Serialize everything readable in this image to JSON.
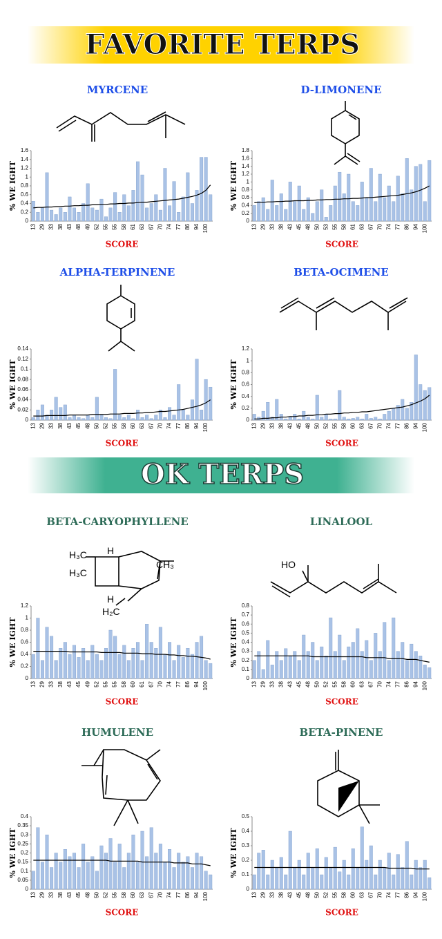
{
  "banners": [
    "FAVORITE TERPS",
    "OK TERPS"
  ],
  "chart_data": [
    {
      "type": "bar",
      "title": "MYRCENE",
      "ylabel": "% WE IGHT",
      "xlabel": "SCORE",
      "categories": [
        "13",
        null,
        "29",
        null,
        "33",
        null,
        "38",
        null,
        "43",
        null,
        "48",
        null,
        "49",
        null,
        "52",
        null,
        "55",
        null,
        "55",
        null,
        "58",
        null,
        "61",
        null,
        "63",
        null,
        "67",
        null,
        "70",
        null,
        "74",
        null,
        "77",
        null,
        "86",
        null,
        "94",
        null,
        "100",
        null
      ],
      "values": [
        0.45,
        0.2,
        0.3,
        1.1,
        0.25,
        0.15,
        0.3,
        0.2,
        0.55,
        0.3,
        0.2,
        0.4,
        0.85,
        0.3,
        0.25,
        0.5,
        0.1,
        0.3,
        0.65,
        0.2,
        0.6,
        0.35,
        0.7,
        1.35,
        1.05,
        0.3,
        0.4,
        0.6,
        0.25,
        1.2,
        0.35,
        0.9,
        0.2,
        0.55,
        1.1,
        0.4,
        0.7,
        1.45,
        1.45,
        0.6
      ],
      "trend": [
        0.3,
        0.31,
        0.31,
        0.32,
        0.32,
        0.33,
        0.33,
        0.34,
        0.34,
        0.35,
        0.35,
        0.36,
        0.36,
        0.37,
        0.37,
        0.38,
        0.38,
        0.39,
        0.39,
        0.4,
        0.4,
        0.41,
        0.41,
        0.42,
        0.43,
        0.43,
        0.44,
        0.45,
        0.46,
        0.47,
        0.48,
        0.49,
        0.5,
        0.52,
        0.54,
        0.56,
        0.59,
        0.63,
        0.7,
        0.82
      ],
      "color": "#a9c2e6",
      "trend_color": "#000000",
      "title_color": "#1f4fe8",
      "ylim": [
        0,
        1.6
      ],
      "yticks": [
        0,
        0.2,
        0.4,
        0.6,
        0.8,
        1,
        1.2,
        1.4,
        1.6
      ]
    },
    {
      "type": "bar",
      "title": "D-LIMONENE",
      "ylabel": "% WE IGHT",
      "xlabel": "SCORE",
      "categories": [
        "13",
        null,
        "29",
        null,
        "33",
        null,
        "38",
        null,
        "43",
        null,
        "45",
        null,
        "48",
        null,
        "50",
        null,
        "53",
        null,
        "55",
        null,
        "58",
        null,
        "61",
        null,
        "63",
        null,
        "67",
        null,
        "70",
        null,
        "74",
        null,
        "77",
        null,
        "86",
        null,
        "94",
        null,
        "100",
        null
      ],
      "values": [
        0.4,
        0.5,
        0.6,
        0.3,
        1.05,
        0.4,
        0.7,
        0.3,
        1.0,
        0.5,
        0.9,
        0.3,
        0.6,
        0.2,
        0.5,
        0.8,
        0.1,
        0.4,
        0.9,
        1.25,
        0.7,
        1.2,
        0.5,
        0.4,
        1.0,
        0.6,
        1.35,
        0.5,
        1.2,
        0.6,
        0.9,
        0.5,
        1.15,
        0.7,
        1.6,
        0.8,
        1.4,
        1.45,
        0.5,
        1.55
      ],
      "trend": [
        0.47,
        0.48,
        0.48,
        0.49,
        0.49,
        0.5,
        0.5,
        0.51,
        0.51,
        0.52,
        0.52,
        0.52,
        0.53,
        0.53,
        0.54,
        0.54,
        0.55,
        0.55,
        0.56,
        0.56,
        0.57,
        0.57,
        0.58,
        0.58,
        0.59,
        0.6,
        0.6,
        0.61,
        0.62,
        0.63,
        0.64,
        0.65,
        0.66,
        0.68,
        0.7,
        0.72,
        0.75,
        0.79,
        0.84,
        0.9
      ],
      "color": "#a9c2e6",
      "trend_color": "#000000",
      "title_color": "#1f4fe8",
      "ylim": [
        0,
        1.8
      ],
      "yticks": [
        0,
        0.2,
        0.4,
        0.6,
        0.8,
        1,
        1.2,
        1.4,
        1.6,
        1.8
      ]
    },
    {
      "type": "bar",
      "title": "ALPHA-TERPINENE",
      "ylabel": "% WE IGHT",
      "xlabel": "SCORE",
      "categories": [
        "13",
        null,
        "29",
        null,
        "33",
        null,
        "38",
        null,
        "43",
        null,
        "45",
        null,
        "48",
        null,
        "50",
        null,
        "52",
        null,
        "55",
        null,
        "58",
        null,
        "60",
        null,
        "63",
        null,
        "67",
        null,
        "70",
        null,
        "74",
        null,
        "77",
        null,
        "86",
        null,
        "94",
        null,
        "100",
        null
      ],
      "values": [
        0.005,
        0.02,
        0.03,
        0.01,
        0.02,
        0.045,
        0.025,
        0.03,
        0.005,
        0.01,
        0.005,
        0.003,
        0.01,
        0.005,
        0.045,
        0.01,
        0.005,
        0.003,
        0.1,
        0.01,
        0.005,
        0.01,
        0.003,
        0.02,
        0.005,
        0.01,
        0.003,
        0.01,
        0.02,
        0.005,
        0.025,
        0.01,
        0.07,
        0.02,
        0.01,
        0.04,
        0.12,
        0.02,
        0.08,
        0.065
      ],
      "trend": [
        0.008,
        0.008,
        0.008,
        0.009,
        0.009,
        0.009,
        0.009,
        0.009,
        0.01,
        0.01,
        0.01,
        0.01,
        0.01,
        0.011,
        0.011,
        0.011,
        0.011,
        0.012,
        0.012,
        0.012,
        0.013,
        0.013,
        0.013,
        0.014,
        0.014,
        0.015,
        0.015,
        0.016,
        0.017,
        0.017,
        0.018,
        0.019,
        0.02,
        0.021,
        0.023,
        0.025,
        0.027,
        0.03,
        0.034,
        0.04
      ],
      "color": "#a9c2e6",
      "trend_color": "#000000",
      "title_color": "#1f4fe8",
      "ylim": [
        0,
        0.14
      ],
      "yticks": [
        0,
        0.02,
        0.04,
        0.06,
        0.08,
        0.1,
        0.12,
        0.14
      ]
    },
    {
      "type": "bar",
      "title": "BETA-OCIMENE",
      "ylabel": "% WE IGHT",
      "xlabel": "SCORE",
      "categories": [
        "13",
        null,
        "29",
        null,
        "33",
        null,
        "38",
        null,
        "43",
        null,
        "45",
        null,
        "48",
        null,
        "50",
        null,
        "52",
        null,
        "55",
        null,
        "58",
        null,
        "60",
        null,
        "63",
        null,
        "67",
        null,
        "70",
        null,
        "74",
        null,
        "77",
        null,
        "86",
        null,
        "94",
        null,
        "100",
        null
      ],
      "values": [
        0.1,
        0.05,
        0.15,
        0.3,
        0.05,
        0.35,
        0.1,
        0.02,
        0.05,
        0.1,
        0.02,
        0.15,
        0.05,
        0.02,
        0.42,
        0.05,
        0.1,
        0.02,
        0.02,
        0.5,
        0.05,
        0.02,
        0.03,
        0.05,
        0.02,
        0.1,
        0.03,
        0.05,
        0.02,
        0.1,
        0.15,
        0.2,
        0.25,
        0.35,
        0.2,
        0.3,
        1.1,
        0.6,
        0.5,
        0.55
      ],
      "trend": [
        0.02,
        0.02,
        0.03,
        0.03,
        0.04,
        0.04,
        0.05,
        0.05,
        0.06,
        0.06,
        0.07,
        0.07,
        0.08,
        0.08,
        0.09,
        0.09,
        0.1,
        0.1,
        0.11,
        0.11,
        0.12,
        0.12,
        0.13,
        0.13,
        0.14,
        0.14,
        0.15,
        0.16,
        0.17,
        0.18,
        0.19,
        0.2,
        0.21,
        0.22,
        0.24,
        0.26,
        0.29,
        0.32,
        0.36,
        0.42
      ],
      "color": "#a9c2e6",
      "trend_color": "#000000",
      "title_color": "#1f4fe8",
      "ylim": [
        0,
        1.2
      ],
      "yticks": [
        0,
        0.2,
        0.4,
        0.6,
        0.8,
        1,
        1.2
      ]
    },
    {
      "type": "bar",
      "title": "BETA-CARYOPHYLLENE",
      "ylabel": "% WE IGHT",
      "xlabel": "SCORE",
      "structure_labels": [
        "H₃C",
        "H₃C",
        "H",
        "CH₃",
        "H",
        "H₂C"
      ],
      "categories": [
        "13",
        null,
        "29",
        null,
        "33",
        null,
        "38",
        null,
        "43",
        null,
        "45",
        null,
        "49",
        null,
        "52",
        null,
        "55",
        null,
        "55",
        null,
        "58",
        null,
        "60",
        null,
        "61",
        null,
        "67",
        null,
        "70",
        null,
        "74",
        null,
        "77",
        null,
        "86",
        null,
        "94",
        null,
        "100",
        null
      ],
      "values": [
        0.4,
        1.0,
        0.3,
        0.85,
        0.7,
        0.3,
        0.5,
        0.6,
        0.4,
        0.55,
        0.35,
        0.5,
        0.3,
        0.55,
        0.4,
        0.3,
        0.5,
        0.8,
        0.7,
        0.4,
        0.55,
        0.3,
        0.5,
        0.6,
        0.3,
        0.9,
        0.6,
        0.5,
        0.85,
        0.4,
        0.6,
        0.3,
        0.55,
        0.35,
        0.5,
        0.4,
        0.6,
        0.7,
        0.3,
        0.25
      ],
      "trend": [
        0.45,
        0.45,
        0.45,
        0.45,
        0.45,
        0.45,
        0.45,
        0.45,
        0.44,
        0.44,
        0.44,
        0.44,
        0.44,
        0.44,
        0.44,
        0.43,
        0.43,
        0.43,
        0.43,
        0.43,
        0.42,
        0.42,
        0.42,
        0.42,
        0.41,
        0.41,
        0.41,
        0.4,
        0.4,
        0.4,
        0.39,
        0.39,
        0.38,
        0.38,
        0.37,
        0.37,
        0.36,
        0.35,
        0.34,
        0.32
      ],
      "color": "#a9c2e6",
      "trend_color": "#000000",
      "title_color": "#2d6b57",
      "ylim": [
        0,
        1.2
      ],
      "yticks": [
        0,
        0.2,
        0.4,
        0.6,
        0.8,
        1,
        1.2
      ]
    },
    {
      "type": "bar",
      "title": "LINALOOL",
      "ylabel": "% WE IGHT",
      "xlabel": "SCORE",
      "structure_labels": [
        "HO"
      ],
      "categories": [
        "13",
        null,
        "29",
        null,
        "33",
        null,
        "38",
        null,
        "43",
        null,
        "45",
        null,
        "48",
        null,
        "50",
        null,
        "52",
        null,
        "55",
        null,
        "58",
        null,
        "60",
        null,
        "63",
        null,
        "67",
        null,
        "70",
        null,
        "74",
        null,
        "77",
        null,
        "86",
        null,
        "94",
        null,
        "100",
        null
      ],
      "values": [
        0.2,
        0.3,
        0.1,
        0.42,
        0.15,
        0.3,
        0.2,
        0.33,
        0.25,
        0.3,
        0.2,
        0.48,
        0.3,
        0.4,
        0.2,
        0.35,
        0.25,
        0.67,
        0.3,
        0.48,
        0.2,
        0.35,
        0.4,
        0.55,
        0.3,
        0.42,
        0.2,
        0.5,
        0.3,
        0.62,
        0.2,
        0.67,
        0.3,
        0.4,
        0.2,
        0.38,
        0.3,
        0.25,
        0.15,
        0.12
      ],
      "trend": [
        0.25,
        0.25,
        0.25,
        0.25,
        0.25,
        0.25,
        0.25,
        0.25,
        0.25,
        0.25,
        0.25,
        0.25,
        0.25,
        0.24,
        0.24,
        0.24,
        0.24,
        0.24,
        0.24,
        0.24,
        0.24,
        0.24,
        0.24,
        0.24,
        0.24,
        0.23,
        0.23,
        0.23,
        0.23,
        0.23,
        0.22,
        0.22,
        0.22,
        0.22,
        0.21,
        0.21,
        0.21,
        0.2,
        0.19,
        0.18
      ],
      "color": "#a9c2e6",
      "trend_color": "#000000",
      "title_color": "#2d6b57",
      "ylim": [
        0,
        0.8
      ],
      "yticks": [
        0,
        0.1,
        0.2,
        0.3,
        0.4,
        0.5,
        0.6,
        0.7,
        0.8
      ]
    },
    {
      "type": "bar",
      "title": "HUMULENE",
      "ylabel": "% WE IGHT",
      "xlabel": "SCORE",
      "categories": [
        "13",
        null,
        "29",
        null,
        "33",
        null,
        "38",
        null,
        "43",
        null,
        "45",
        null,
        "48",
        null,
        "50",
        null,
        "52",
        null,
        "55",
        null,
        "58",
        null,
        "60",
        null,
        "63",
        null,
        "67",
        null,
        "70",
        null,
        "74",
        null,
        "77",
        null,
        "86",
        null,
        "94",
        null,
        "100",
        null
      ],
      "values": [
        0.1,
        0.34,
        0.15,
        0.3,
        0.12,
        0.2,
        0.15,
        0.22,
        0.18,
        0.2,
        0.12,
        0.25,
        0.15,
        0.18,
        0.1,
        0.24,
        0.2,
        0.28,
        0.15,
        0.25,
        0.12,
        0.2,
        0.3,
        0.15,
        0.32,
        0.18,
        0.34,
        0.2,
        0.25,
        0.15,
        0.22,
        0.12,
        0.2,
        0.15,
        0.18,
        0.12,
        0.2,
        0.18,
        0.1,
        0.08
      ],
      "trend": [
        0.16,
        0.16,
        0.16,
        0.16,
        0.16,
        0.16,
        0.16,
        0.16,
        0.16,
        0.16,
        0.16,
        0.16,
        0.16,
        0.16,
        0.16,
        0.16,
        0.16,
        0.155,
        0.155,
        0.155,
        0.155,
        0.155,
        0.155,
        0.155,
        0.15,
        0.15,
        0.15,
        0.15,
        0.15,
        0.15,
        0.15,
        0.145,
        0.145,
        0.145,
        0.145,
        0.14,
        0.14,
        0.14,
        0.135,
        0.13
      ],
      "color": "#a9c2e6",
      "trend_color": "#000000",
      "title_color": "#2d6b57",
      "ylim": [
        0,
        0.4
      ],
      "yticks": [
        0,
        0.05,
        0.1,
        0.15,
        0.2,
        0.25,
        0.3,
        0.35,
        0.4
      ]
    },
    {
      "type": "bar",
      "title": "BETA-PINENE",
      "ylabel": "% WE IGHT",
      "xlabel": "SCORE",
      "categories": [
        "13",
        null,
        "29",
        null,
        "33",
        null,
        "38",
        null,
        "43",
        null,
        "45",
        null,
        "48",
        null,
        "50",
        null,
        "52",
        null,
        "55",
        null,
        "58",
        null,
        "60",
        null,
        "63",
        null,
        "67",
        null,
        "70",
        null,
        "74",
        null,
        "77",
        null,
        "86",
        null,
        "94",
        null,
        "100",
        null
      ],
      "values": [
        0.1,
        0.25,
        0.27,
        0.1,
        0.2,
        0.15,
        0.22,
        0.1,
        0.4,
        0.15,
        0.2,
        0.1,
        0.25,
        0.15,
        0.28,
        0.1,
        0.22,
        0.15,
        0.29,
        0.12,
        0.2,
        0.1,
        0.28,
        0.15,
        0.43,
        0.2,
        0.3,
        0.1,
        0.2,
        0.15,
        0.25,
        0.1,
        0.24,
        0.15,
        0.33,
        0.1,
        0.2,
        0.15,
        0.2,
        0.08
      ],
      "trend": [
        0.15,
        0.15,
        0.15,
        0.15,
        0.15,
        0.15,
        0.15,
        0.15,
        0.15,
        0.15,
        0.15,
        0.15,
        0.15,
        0.15,
        0.15,
        0.15,
        0.15,
        0.15,
        0.15,
        0.15,
        0.15,
        0.15,
        0.15,
        0.15,
        0.15,
        0.15,
        0.15,
        0.15,
        0.15,
        0.15,
        0.145,
        0.145,
        0.145,
        0.145,
        0.145,
        0.145,
        0.14,
        0.14,
        0.14,
        0.14
      ],
      "color": "#a9c2e6",
      "trend_color": "#000000",
      "title_color": "#2d6b57",
      "ylim": [
        0,
        0.5
      ],
      "yticks": [
        0,
        0.1,
        0.2,
        0.3,
        0.4,
        0.5
      ]
    }
  ]
}
